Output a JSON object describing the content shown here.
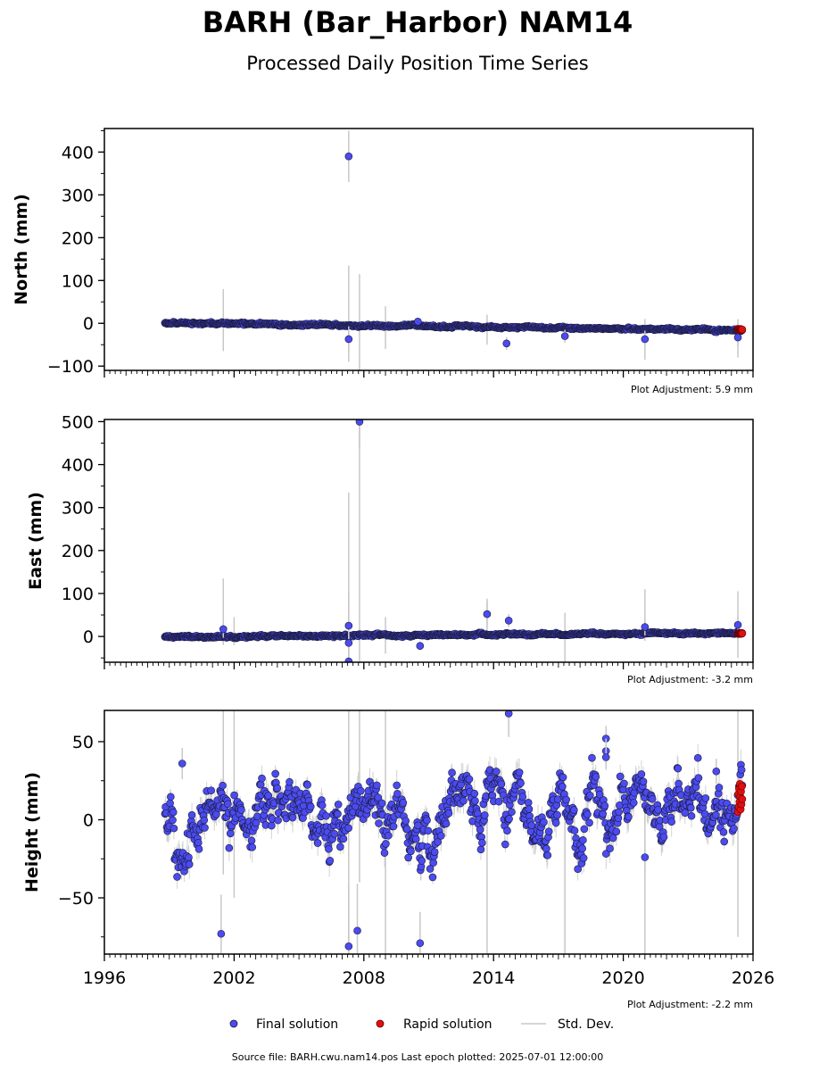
{
  "header": {
    "title": "BARH (Bar_Harbor) NAM14",
    "subtitle": "Processed Daily Position Time Series"
  },
  "legend": {
    "final_label": "Final solution",
    "rapid_label": "Rapid solution",
    "std_label": "Std. Dev."
  },
  "footer": {
    "source": "Source file: BARH.cwu.nam14.pos  Last epoch plotted: 2025-07-01 12:00:00"
  },
  "colors": {
    "final": "#4b4bf0",
    "rapid": "#e01010",
    "stddev": "#c8c8c8",
    "marker_edge": "#1a1a3a"
  },
  "chart_data": [
    {
      "type": "scatter",
      "component": "north",
      "ylabel": "North (mm)",
      "adjustment": "Plot Adjustment: 5.9 mm",
      "xlim": [
        1996,
        2026
      ],
      "ylim": [
        -110,
        455
      ],
      "yticks": [
        -100,
        0,
        100,
        200,
        300,
        400
      ],
      "ytick_labels": [
        "−100",
        "0",
        "100",
        "200",
        "300",
        "400"
      ],
      "xtick_labels_shown": false,
      "trend": {
        "start": [
          1998.8,
          1
        ],
        "end": [
          2025.5,
          -16
        ],
        "noise": 3
      },
      "rapid": {
        "x_range": [
          2025.3,
          2025.5
        ],
        "y": [
          -13,
          -16
        ]
      },
      "outliers": [
        {
          "x": 2007.3,
          "y": 390,
          "sd": 60
        },
        {
          "x": 2007.3,
          "y": -37,
          "sd": 30
        },
        {
          "x": 2014.6,
          "y": -47,
          "sd": 15
        },
        {
          "x": 2017.3,
          "y": -30,
          "sd": 15
        },
        {
          "x": 2021.0,
          "y": -37,
          "sd": 20
        },
        {
          "x": 2025.3,
          "y": -33,
          "sd": 20
        },
        {
          "x": 2010.5,
          "y": 4,
          "sd": 8
        }
      ],
      "tall_sd": [
        {
          "x": 2001.5,
          "lo": -65,
          "hi": 80
        },
        {
          "x": 2007.3,
          "lo": -90,
          "hi": 135
        },
        {
          "x": 2007.8,
          "lo": -120,
          "hi": 115
        },
        {
          "x": 2009.0,
          "lo": -60,
          "hi": 40
        },
        {
          "x": 2013.7,
          "lo": -50,
          "hi": 20
        },
        {
          "x": 2021.0,
          "lo": -85,
          "hi": 10
        },
        {
          "x": 2025.3,
          "lo": -80,
          "hi": 10
        }
      ]
    },
    {
      "type": "scatter",
      "component": "east",
      "ylabel": "East (mm)",
      "adjustment": "Plot Adjustment: -3.2 mm",
      "xlim": [
        1996,
        2026
      ],
      "ylim": [
        -60,
        505
      ],
      "yticks": [
        0,
        100,
        200,
        300,
        400,
        500
      ],
      "ytick_labels": [
        "0",
        "100",
        "200",
        "300",
        "400",
        "500"
      ],
      "xtick_labels_shown": false,
      "trend": {
        "start": [
          1998.8,
          -1
        ],
        "end": [
          2025.5,
          8
        ],
        "noise": 3
      },
      "rapid": {
        "x_range": [
          2025.3,
          2025.5
        ],
        "y": [
          6,
          8
        ]
      },
      "outliers": [
        {
          "x": 2007.8,
          "y": 500,
          "sd": 60
        },
        {
          "x": 2007.3,
          "y": 25,
          "sd": 80
        },
        {
          "x": 2007.3,
          "y": -15,
          "sd": 30
        },
        {
          "x": 2007.3,
          "y": -58,
          "sd": 30
        },
        {
          "x": 2001.5,
          "y": 17,
          "sd": 20
        },
        {
          "x": 2010.6,
          "y": -22,
          "sd": 10
        },
        {
          "x": 2013.7,
          "y": 52,
          "sd": 30
        },
        {
          "x": 2014.7,
          "y": 37,
          "sd": 15
        },
        {
          "x": 2021.0,
          "y": 22,
          "sd": 20
        },
        {
          "x": 2025.3,
          "y": 27,
          "sd": 20
        }
      ],
      "tall_sd": [
        {
          "x": 2001.5,
          "lo": -20,
          "hi": 135
        },
        {
          "x": 2002.0,
          "lo": -20,
          "hi": 45
        },
        {
          "x": 2007.3,
          "lo": -80,
          "hi": 335
        },
        {
          "x": 2007.8,
          "lo": -80,
          "hi": 500
        },
        {
          "x": 2009.0,
          "lo": -40,
          "hi": 45
        },
        {
          "x": 2013.7,
          "lo": 5,
          "hi": 88
        },
        {
          "x": 2017.3,
          "lo": -60,
          "hi": 55
        },
        {
          "x": 2021.0,
          "lo": -10,
          "hi": 110
        },
        {
          "x": 2025.3,
          "lo": -50,
          "hi": 105
        }
      ]
    },
    {
      "type": "scatter",
      "component": "height",
      "ylabel": "Height (mm)",
      "adjustment": "Plot Adjustment: -2.2 mm",
      "xlim": [
        1996,
        2026
      ],
      "ylim": [
        -86,
        70
      ],
      "yticks": [
        -50,
        0,
        50
      ],
      "ytick_labels": [
        "−50",
        "0",
        "50"
      ],
      "xticks": [
        1996,
        2002,
        2008,
        2014,
        2020,
        2026
      ],
      "xtick_labels": [
        "1996",
        "2002",
        "2008",
        "2014",
        "2020",
        "2026"
      ],
      "xtick_labels_shown": true,
      "trend": {
        "start": [
          1998.8,
          -2
        ],
        "end": [
          2025.5,
          10
        ],
        "noise": 11
      },
      "rapid": {
        "x_range": [
          2025.3,
          2025.5
        ],
        "y": [
          5,
          23
        ]
      },
      "outliers": [
        {
          "x": 1999.6,
          "y": 36,
          "sd": 10
        },
        {
          "x": 2001.4,
          "y": -73,
          "sd": 25
        },
        {
          "x": 2007.3,
          "y": -81,
          "sd": 40
        },
        {
          "x": 2007.7,
          "y": -71,
          "sd": 30
        },
        {
          "x": 2010.6,
          "y": -79,
          "sd": 20
        },
        {
          "x": 2014.7,
          "y": 68,
          "sd": 15
        },
        {
          "x": 2019.2,
          "y": 52,
          "sd": 8
        },
        {
          "x": 2019.2,
          "y": 44,
          "sd": 8
        },
        {
          "x": 2019.2,
          "y": 40,
          "sd": 8
        },
        {
          "x": 2021.0,
          "y": -24,
          "sd": 10
        },
        {
          "x": 2024.3,
          "y": 31,
          "sd": 8
        }
      ],
      "tall_sd": [
        {
          "x": 2001.5,
          "lo": -35,
          "hi": 70
        },
        {
          "x": 2002.0,
          "lo": -50,
          "hi": 70
        },
        {
          "x": 2007.3,
          "lo": -86,
          "hi": 70
        },
        {
          "x": 2007.8,
          "lo": -40,
          "hi": 70
        },
        {
          "x": 2009.0,
          "lo": -86,
          "hi": 70
        },
        {
          "x": 2013.7,
          "lo": -86,
          "hi": 30
        },
        {
          "x": 2017.3,
          "lo": -86,
          "hi": 20
        },
        {
          "x": 2021.0,
          "lo": -86,
          "hi": 20
        },
        {
          "x": 2025.3,
          "lo": -75,
          "hi": 70
        }
      ]
    }
  ]
}
